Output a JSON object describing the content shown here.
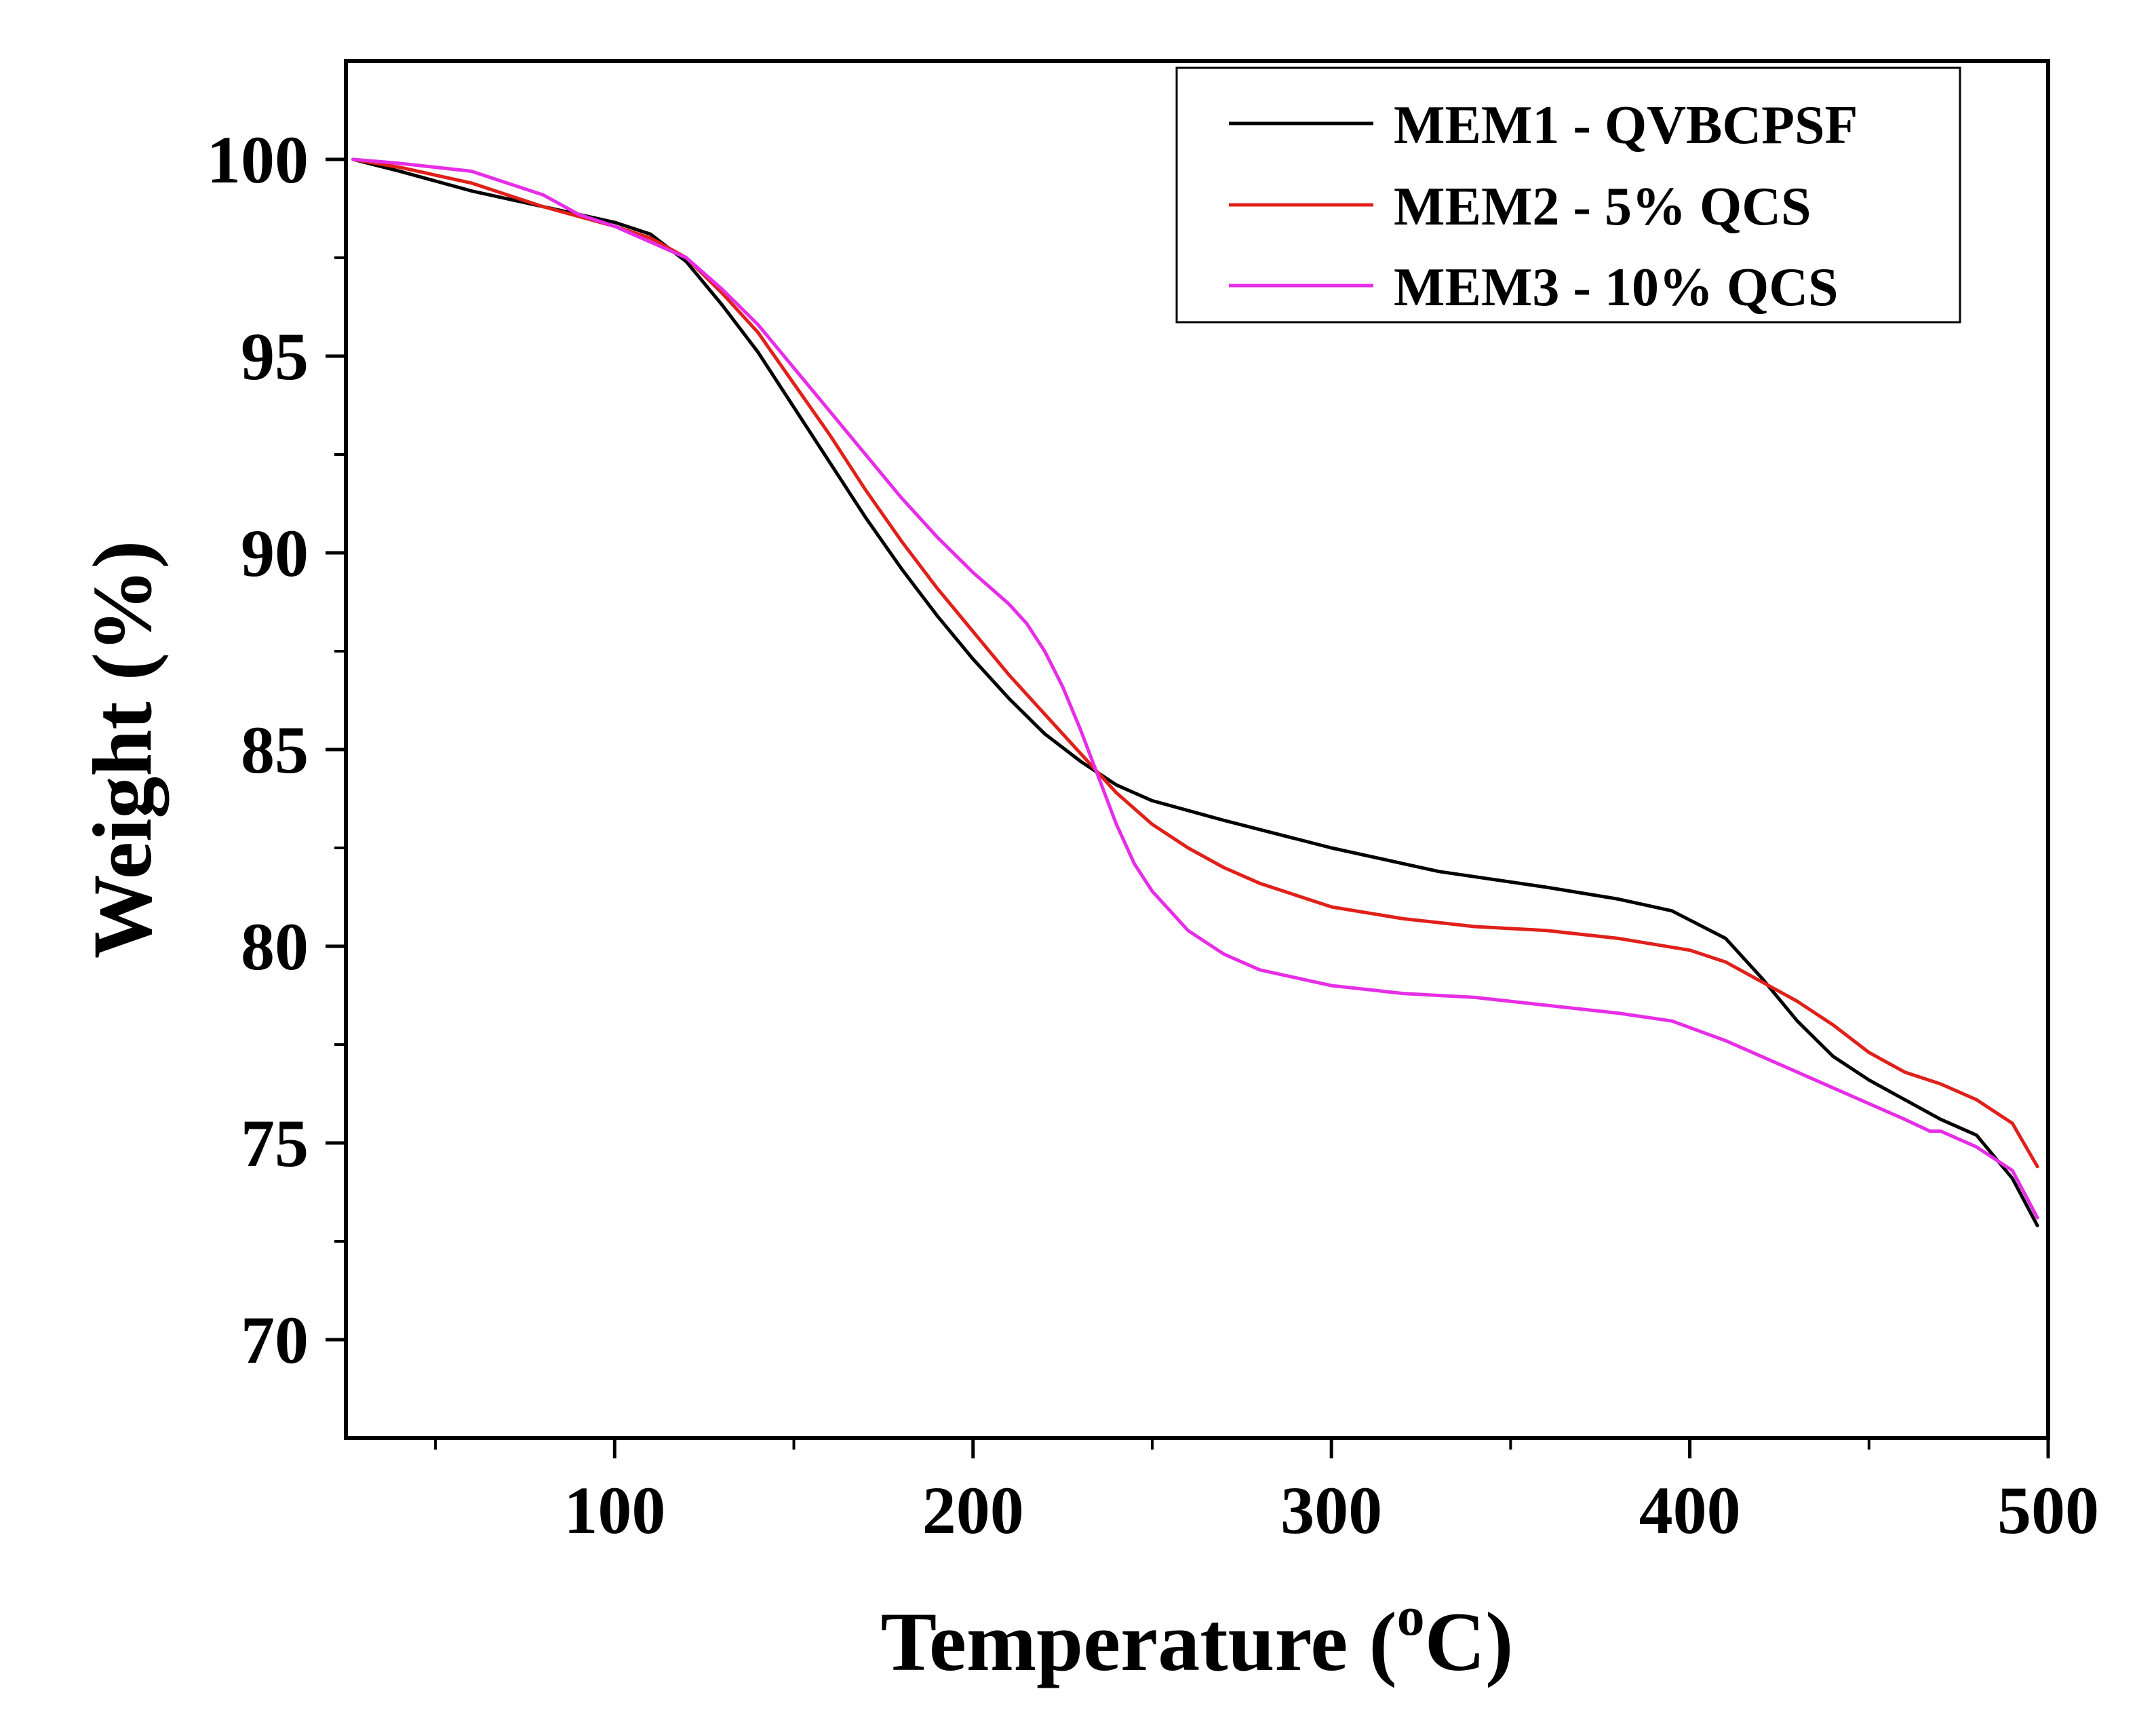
{
  "chart_data": {
    "type": "line",
    "title": "",
    "xlabel": "Temperature (",
    "xlabel_super": "o",
    "xlabel_unit": "C)",
    "ylabel": "Weight (%)",
    "xlim": [
      25,
      500
    ],
    "ylim": [
      67.5,
      102.5
    ],
    "xticks": [
      100,
      200,
      300,
      400,
      500
    ],
    "yticks": [
      70,
      75,
      80,
      85,
      90,
      95,
      100
    ],
    "xminor": [
      50,
      150,
      250,
      350,
      450
    ],
    "yminor": [
      72.5,
      77.5,
      82.5,
      87.5,
      92.5,
      97.5
    ],
    "grid": false,
    "legend_position": "top-right",
    "series": [
      {
        "name": "MEM1 - QVBCPSF",
        "color": "#000000",
        "points": [
          [
            27,
            100
          ],
          [
            40,
            99.7
          ],
          [
            60,
            99.2
          ],
          [
            80,
            98.8
          ],
          [
            100,
            98.4
          ],
          [
            110,
            98.1
          ],
          [
            120,
            97.4
          ],
          [
            130,
            96.3
          ],
          [
            140,
            95.1
          ],
          [
            150,
            93.7
          ],
          [
            160,
            92.3
          ],
          [
            170,
            90.9
          ],
          [
            180,
            89.6
          ],
          [
            190,
            88.4
          ],
          [
            200,
            87.3
          ],
          [
            210,
            86.3
          ],
          [
            220,
            85.4
          ],
          [
            230,
            84.7
          ],
          [
            240,
            84.1
          ],
          [
            250,
            83.7
          ],
          [
            270,
            83.2
          ],
          [
            300,
            82.5
          ],
          [
            330,
            81.9
          ],
          [
            360,
            81.5
          ],
          [
            380,
            81.2
          ],
          [
            395,
            80.9
          ],
          [
            410,
            80.2
          ],
          [
            420,
            79.2
          ],
          [
            430,
            78.1
          ],
          [
            440,
            77.2
          ],
          [
            450,
            76.6
          ],
          [
            460,
            76.1
          ],
          [
            470,
            75.6
          ],
          [
            480,
            75.2
          ],
          [
            490,
            74.1
          ],
          [
            497,
            72.9
          ]
        ]
      },
      {
        "name": "MEM2 - 5% QCS",
        "color": "#e0201a",
        "points": [
          [
            27,
            100
          ],
          [
            40,
            99.8
          ],
          [
            60,
            99.4
          ],
          [
            80,
            98.8
          ],
          [
            100,
            98.3
          ],
          [
            110,
            98.0
          ],
          [
            120,
            97.5
          ],
          [
            130,
            96.6
          ],
          [
            140,
            95.6
          ],
          [
            150,
            94.3
          ],
          [
            160,
            93.0
          ],
          [
            170,
            91.6
          ],
          [
            180,
            90.3
          ],
          [
            190,
            89.1
          ],
          [
            200,
            88.0
          ],
          [
            210,
            86.9
          ],
          [
            220,
            85.9
          ],
          [
            230,
            84.9
          ],
          [
            240,
            83.9
          ],
          [
            250,
            83.1
          ],
          [
            260,
            82.5
          ],
          [
            270,
            82.0
          ],
          [
            280,
            81.6
          ],
          [
            300,
            81.0
          ],
          [
            320,
            80.7
          ],
          [
            340,
            80.5
          ],
          [
            360,
            80.4
          ],
          [
            380,
            80.2
          ],
          [
            400,
            79.9
          ],
          [
            410,
            79.6
          ],
          [
            420,
            79.1
          ],
          [
            430,
            78.6
          ],
          [
            440,
            78.0
          ],
          [
            450,
            77.3
          ],
          [
            460,
            76.8
          ],
          [
            470,
            76.5
          ],
          [
            480,
            76.1
          ],
          [
            490,
            75.5
          ],
          [
            497,
            74.4
          ]
        ]
      },
      {
        "name": "MEM3 - 10% QCS",
        "color": "#e62ee6",
        "points": [
          [
            27,
            100
          ],
          [
            40,
            99.9
          ],
          [
            60,
            99.7
          ],
          [
            80,
            99.1
          ],
          [
            90,
            98.6
          ],
          [
            100,
            98.3
          ],
          [
            110,
            97.9
          ],
          [
            120,
            97.5
          ],
          [
            130,
            96.7
          ],
          [
            140,
            95.8
          ],
          [
            150,
            94.7
          ],
          [
            160,
            93.6
          ],
          [
            170,
            92.5
          ],
          [
            180,
            91.4
          ],
          [
            190,
            90.4
          ],
          [
            200,
            89.5
          ],
          [
            210,
            88.7
          ],
          [
            215,
            88.2
          ],
          [
            220,
            87.5
          ],
          [
            225,
            86.6
          ],
          [
            230,
            85.5
          ],
          [
            235,
            84.3
          ],
          [
            240,
            83.1
          ],
          [
            245,
            82.1
          ],
          [
            250,
            81.4
          ],
          [
            260,
            80.4
          ],
          [
            270,
            79.8
          ],
          [
            280,
            79.4
          ],
          [
            300,
            79.0
          ],
          [
            320,
            78.8
          ],
          [
            340,
            78.7
          ],
          [
            360,
            78.5
          ],
          [
            380,
            78.3
          ],
          [
            395,
            78.1
          ],
          [
            410,
            77.6
          ],
          [
            420,
            77.2
          ],
          [
            430,
            76.8
          ],
          [
            440,
            76.4
          ],
          [
            450,
            76.0
          ],
          [
            460,
            75.6
          ],
          [
            467,
            75.3
          ],
          [
            470,
            75.3
          ],
          [
            480,
            74.9
          ],
          [
            490,
            74.3
          ],
          [
            497,
            73.1
          ]
        ]
      }
    ]
  }
}
